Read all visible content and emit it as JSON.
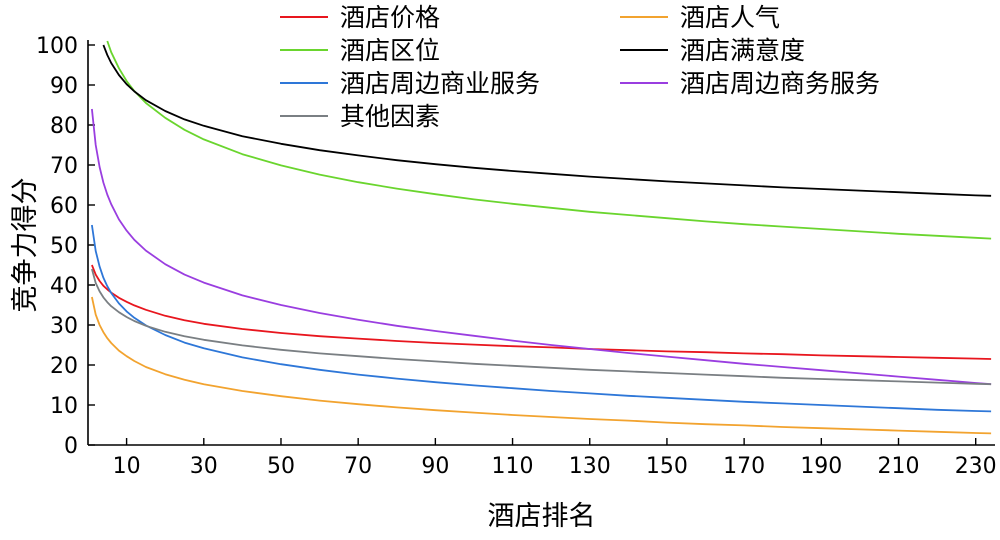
{
  "chart_data": {
    "type": "line",
    "title": "",
    "xlabel": "酒店排名",
    "ylabel": "竞争力得分",
    "xlim": [
      0,
      235
    ],
    "ylim": [
      0,
      100
    ],
    "x_ticks": [
      10,
      30,
      50,
      70,
      90,
      110,
      130,
      150,
      170,
      190,
      210,
      230
    ],
    "y_ticks": [
      0,
      10,
      20,
      30,
      40,
      50,
      60,
      70,
      80,
      90,
      100
    ],
    "legend_position": "top",
    "grid": false,
    "x": [
      1,
      2,
      3,
      4,
      5,
      6,
      8,
      10,
      12,
      15,
      20,
      25,
      30,
      40,
      50,
      60,
      70,
      80,
      90,
      100,
      110,
      120,
      130,
      140,
      150,
      160,
      170,
      180,
      190,
      200,
      210,
      220,
      230,
      234
    ],
    "series": [
      {
        "name": "酒店价格",
        "color": "#e8161e",
        "values": [
          45,
          42.6,
          41,
          39.8,
          38.9,
          38.1,
          36.8,
          35.8,
          34.9,
          33.8,
          32.3,
          31.2,
          30.3,
          29,
          28,
          27.2,
          26.6,
          26,
          25.5,
          25.1,
          24.7,
          24.4,
          24,
          23.7,
          23.4,
          23.2,
          22.9,
          22.7,
          22.4,
          22.2,
          22,
          21.8,
          21.6,
          21.5
        ]
      },
      {
        "name": "酒店人气",
        "color": "#f2a32f",
        "values": [
          37,
          32.6,
          30,
          28.2,
          26.7,
          25.5,
          23.6,
          22.2,
          21,
          19.5,
          17.7,
          16.3,
          15.2,
          13.5,
          12.2,
          11.1,
          10.2,
          9.4,
          8.7,
          8.1,
          7.5,
          7,
          6.5,
          6.1,
          5.6,
          5.2,
          4.9,
          4.5,
          4.2,
          3.9,
          3.6,
          3.3,
          3,
          2.9
        ]
      },
      {
        "name": "酒店区位",
        "color": "#6ad52e",
        "values": [
          null,
          null,
          null,
          null,
          101,
          98.2,
          94.2,
          91,
          88.5,
          85.5,
          81.8,
          78.8,
          76.4,
          72.7,
          69.9,
          67.6,
          65.7,
          64.1,
          62.7,
          61.4,
          60.3,
          59.3,
          58.3,
          57.5,
          56.7,
          55.9,
          55.2,
          54.6,
          54,
          53.4,
          52.8,
          52.3,
          51.8,
          51.6
        ]
      },
      {
        "name": "酒店满意度",
        "color": "#000000",
        "values": [
          null,
          null,
          null,
          100,
          97.5,
          95.5,
          92.5,
          90.2,
          88.4,
          86.2,
          83.5,
          81.4,
          79.8,
          77.2,
          75.3,
          73.7,
          72.4,
          71.2,
          70.2,
          69.3,
          68.5,
          67.8,
          67.1,
          66.5,
          65.9,
          65.4,
          64.9,
          64.4,
          64,
          63.6,
          63.2,
          62.8,
          62.4,
          62.3
        ]
      },
      {
        "name": "酒店周边商业服务",
        "color": "#2e77d8",
        "values": [
          55,
          48.5,
          44.6,
          41.8,
          39.7,
          38,
          35.4,
          33.4,
          31.8,
          29.9,
          27.5,
          25.6,
          24.2,
          21.9,
          20.2,
          18.8,
          17.6,
          16.6,
          15.7,
          14.9,
          14.2,
          13.5,
          12.9,
          12.3,
          11.8,
          11.3,
          10.8,
          10.4,
          10,
          9.6,
          9.2,
          8.8,
          8.5,
          8.4
        ]
      },
      {
        "name": "酒店周边商务服务",
        "color": "#9a3ee0",
        "values": [
          84,
          75,
          69.5,
          65.6,
          62.6,
          60.2,
          56.4,
          53.6,
          51.3,
          48.6,
          45.2,
          42.6,
          40.6,
          37.4,
          35,
          33,
          31.3,
          29.8,
          28.5,
          27.3,
          26.1,
          25,
          24,
          23,
          22.1,
          21.2,
          20.3,
          19.5,
          18.7,
          17.9,
          17.1,
          16.3,
          15.5,
          15.2
        ]
      },
      {
        "name": "其他因素",
        "color": "#7a7f83",
        "values": [
          44,
          40.5,
          38.4,
          36.9,
          35.7,
          34.7,
          33.2,
          32,
          31,
          29.8,
          28.3,
          27.2,
          26.3,
          24.9,
          23.8,
          22.9,
          22.2,
          21.5,
          20.9,
          20.3,
          19.8,
          19.3,
          18.8,
          18.4,
          18,
          17.6,
          17.2,
          16.8,
          16.5,
          16.2,
          15.9,
          15.6,
          15.3,
          15.2
        ]
      }
    ]
  }
}
